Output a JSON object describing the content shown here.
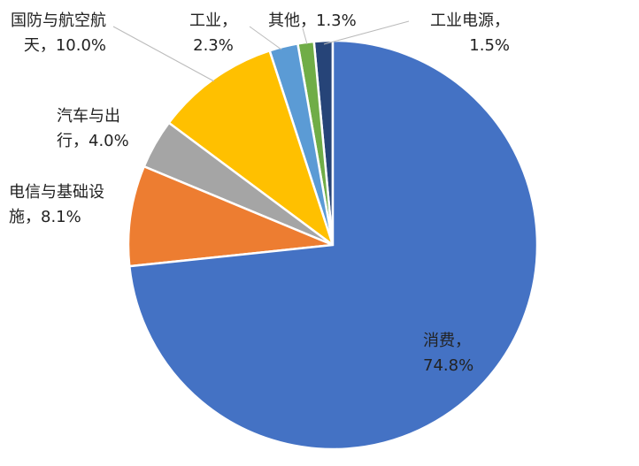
{
  "chart_data": {
    "type": "pie",
    "categories": [
      "消费",
      "电信与基础设施",
      "汽车与出行",
      "国防与航空航天",
      "工业",
      "其他",
      "工业电源"
    ],
    "values": [
      74.8,
      8.1,
      4.0,
      10.0,
      2.3,
      1.3,
      1.5
    ],
    "value_labels": [
      "74.8%",
      "8.1%",
      "4.0%",
      "10.0%",
      "2.3%",
      "1.3%",
      "1.5%"
    ],
    "separator": "，",
    "colors": [
      "#4472c4",
      "#ed7d31",
      "#a5a5a5",
      "#ffc000",
      "#5b9bd5",
      "#70ad47",
      "#264478"
    ]
  }
}
